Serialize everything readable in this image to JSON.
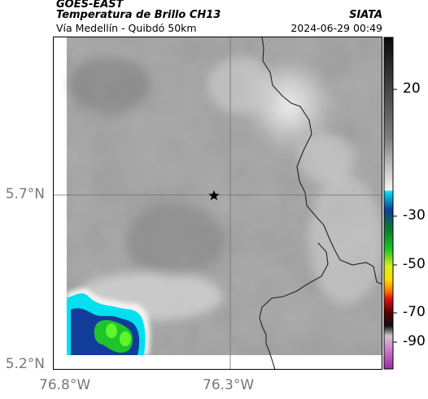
{
  "header": {
    "satellite": "GOES-EAST",
    "product": "Temperatura de Brillo CH13",
    "region": "Vía Medellín - Quibdó 50km",
    "organization": "SIATA",
    "timestamp": "2024-06-29 00:49"
  },
  "axes": {
    "y_ticks": [
      {
        "label": "5.7°N",
        "value": 5.7
      },
      {
        "label": "5.2°N",
        "value": 5.2
      }
    ],
    "x_ticks": [
      {
        "label": "76.8°W",
        "value": -76.8
      },
      {
        "label": "76.3°W",
        "value": -76.3
      }
    ]
  },
  "colorbar": {
    "ticks": [
      {
        "label": "20",
        "value": 20
      },
      {
        "label": "-30",
        "value": -30
      },
      {
        "label": "-50",
        "value": -50
      },
      {
        "label": "-70",
        "value": -70
      },
      {
        "label": "-90",
        "value": -90
      }
    ]
  },
  "marker": {
    "icon": "star-icon"
  },
  "colors": {
    "cold_cyan": "#00e0ee",
    "cold_blue": "#123c9a",
    "cold_green": "#1fc42a",
    "cold_bright_green": "#5ff52e"
  }
}
